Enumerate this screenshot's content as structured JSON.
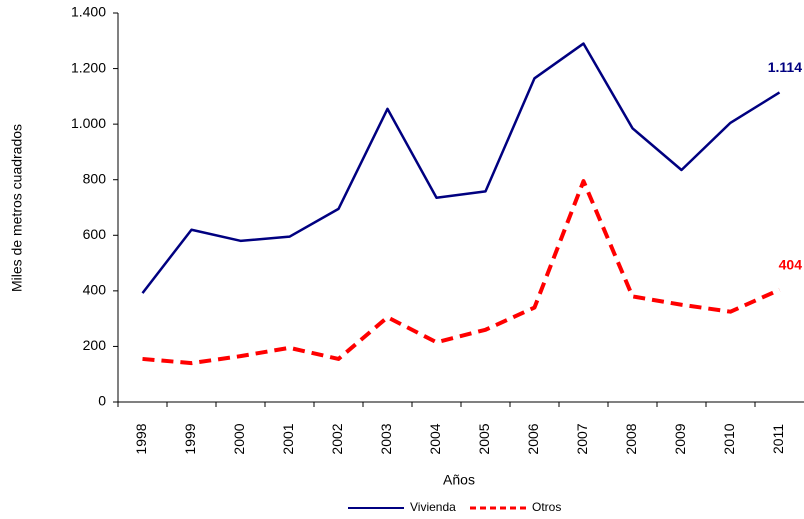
{
  "chart_data": {
    "type": "line",
    "x_label": "Años",
    "y_label": "Miles de metros cuadrados",
    "categories": [
      "1998",
      "1999",
      "2000",
      "2001",
      "2002",
      "2003",
      "2004",
      "2005",
      "2006",
      "2007",
      "2008",
      "2009",
      "2010",
      "2011"
    ],
    "series": [
      {
        "name": "Vivienda",
        "color": "#000080",
        "line_style": "solid",
        "values": [
          392,
          620,
          580,
          595,
          695,
          1055,
          735,
          758,
          1165,
          1290,
          985,
          835,
          1005,
          1114
        ],
        "value_labels": [
          null,
          null,
          null,
          null,
          null,
          null,
          null,
          null,
          null,
          null,
          null,
          null,
          null,
          "1.114"
        ]
      },
      {
        "name": "Otros",
        "color": "#ff0000",
        "line_style": "dashed",
        "values": [
          155,
          140,
          165,
          195,
          155,
          305,
          215,
          260,
          340,
          795,
          380,
          350,
          325,
          404
        ],
        "value_labels": [
          null,
          null,
          null,
          null,
          null,
          null,
          null,
          null,
          null,
          null,
          null,
          null,
          null,
          "404"
        ]
      }
    ],
    "ylim": [
      0,
      1400
    ],
    "yticks": [
      0,
      200,
      400,
      600,
      800,
      {
        "value": 1000,
        "label": "1.000"
      },
      {
        "value": 1200,
        "label": "1.200"
      },
      {
        "value": 1400,
        "label": "1.400"
      }
    ],
    "grid": false,
    "legend": "bottom"
  }
}
